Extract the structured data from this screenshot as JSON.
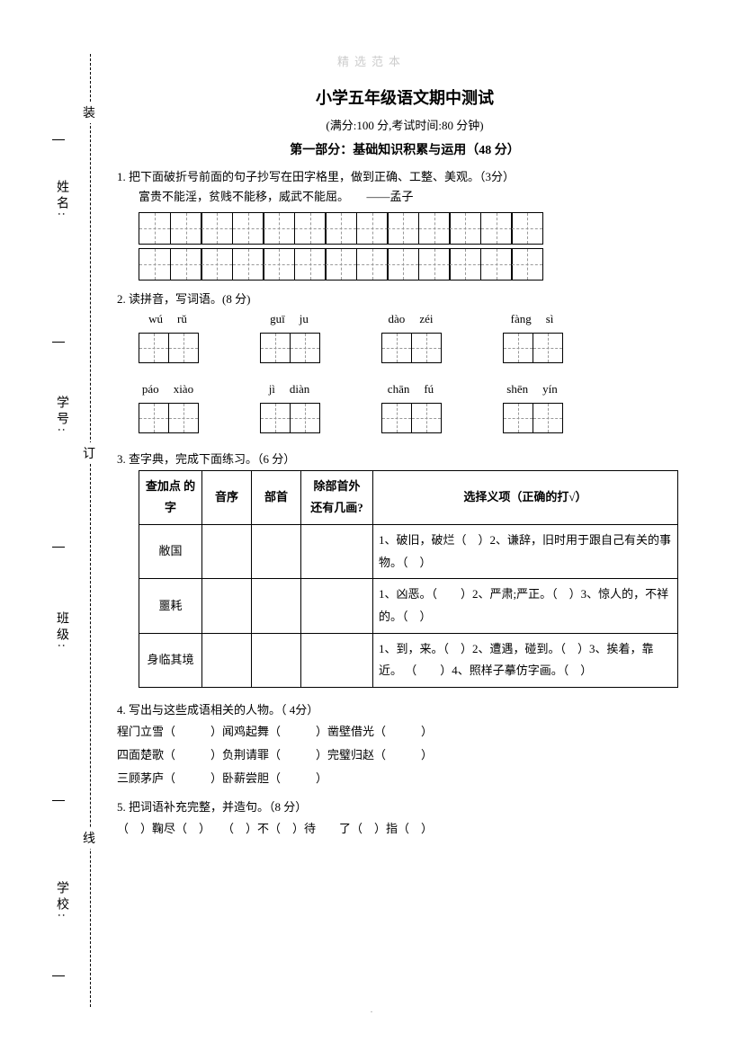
{
  "watermark": "精选范本",
  "binding": {
    "zhuang": "装",
    "ding": "订",
    "xian": "线"
  },
  "side": {
    "name": "姓名:",
    "number": "学号:",
    "class": "班级:",
    "school": "学校:"
  },
  "title": "小学五年级语文期中测试",
  "subtitle": "(满分:100 分,考试时间:80 分钟)",
  "section1": "第一部分：基础知识积累与运用（48 分）",
  "q1": {
    "text": "1. 把下面破折号前面的句子抄写在田字格里，做到正确、工整、美观。（3分）",
    "quote": "富贵不能淫，贫贱不能移，威武不能屈。　　——孟子"
  },
  "q2": {
    "text": "2. 读拼音，写词语。(8 分)",
    "row1": [
      {
        "a": "wú",
        "b": "rǔ"
      },
      {
        "a": "guī",
        "b": "ju"
      },
      {
        "a": "dào",
        "b": "zéi"
      },
      {
        "a": "fàng",
        "b": "sì"
      }
    ],
    "row2": [
      {
        "a": "páo",
        "b": "xiào"
      },
      {
        "a": "jì",
        "b": "diàn"
      },
      {
        "a": "chān",
        "b": "fú"
      },
      {
        "a": "shēn",
        "b": "yín"
      }
    ]
  },
  "q3": {
    "text": "3. 查字典，完成下面练习。（6 分）",
    "headers": {
      "c1": "查加点\n的字",
      "c2": "音序",
      "c3": "部首",
      "c4": "除部首外\n还有几画?",
      "c5": "选择义项（正确的打√）"
    },
    "rows": [
      {
        "word": "敝国",
        "opt": "1、破旧，破烂（　）2、谦辞，旧时用于跟自己有关的事物。（　）"
      },
      {
        "word": "噩耗",
        "opt": "1、凶恶。（　　）2、严肃;严正。（　）3、惊人的，不祥的。（　）"
      },
      {
        "word": "身临其境",
        "opt": "1、到，来。（　）2、遭遇，碰到。（　）3、挨着，靠近。 （　　）4、照样子摹仿字画。（　）"
      }
    ]
  },
  "q4": {
    "text": "4. 写出与这些成语相关的人物。（ 4分）",
    "line1": "程门立雪（　　　）闻鸡起舞（　　　）凿壁借光（　　　）",
    "line2": "四面楚歌（　　　）负荆请罪（　　　）完璧归赵（　　　）",
    "line3": "三顾茅庐（　　　）卧薪尝胆（　　　）"
  },
  "q5": {
    "text": "5. 把词语补充完整，并造句。（8 分）",
    "line1": "（　）鞠尽（　）　　（　）不（　）待　　了（　）指（　）"
  }
}
